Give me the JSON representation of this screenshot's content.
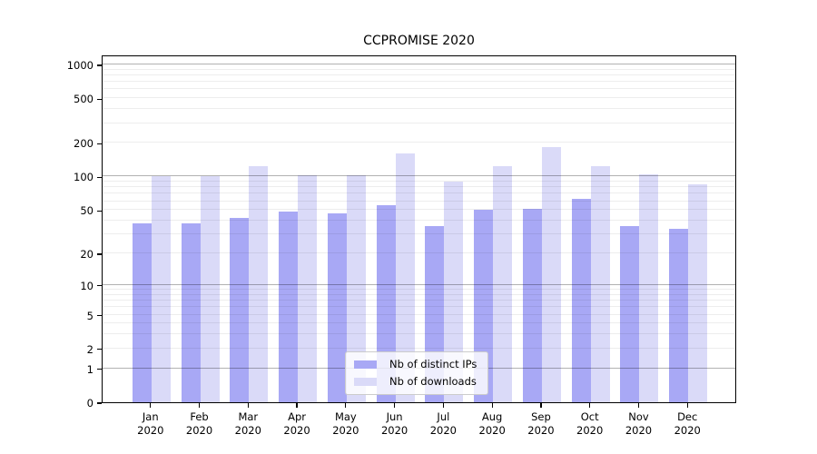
{
  "chart_data": {
    "type": "bar",
    "title": "CCPROMISE 2020",
    "categories": [
      "Jan 2020",
      "Feb 2020",
      "Mar 2020",
      "Apr 2020",
      "May 2020",
      "Jun 2020",
      "Jul 2020",
      "Aug 2020",
      "Sep 2020",
      "Oct 2020",
      "Nov 2020",
      "Dec 2020"
    ],
    "series": [
      {
        "name": "Nb of distinct IPs",
        "color": "#a8a8f5",
        "values": [
          38,
          38,
          42,
          48,
          47,
          55,
          36,
          50,
          51,
          63,
          36,
          34
        ]
      },
      {
        "name": "Nb of downloads",
        "color": "#dadaf8",
        "values": [
          100,
          101,
          125,
          103,
          102,
          160,
          91,
          125,
          183,
          125,
          104,
          85
        ]
      }
    ],
    "y_ticks": [
      0,
      1,
      2,
      5,
      10,
      20,
      50,
      100,
      200,
      500,
      1000
    ],
    "y_scale": "log(value+1)",
    "ylim": [
      0,
      1225
    ],
    "xlabel": "",
    "ylabel": "",
    "grid": true,
    "legend_position": "lower center",
    "colors": {
      "axis": "#000000",
      "major_grid": "#b0b0b0",
      "minor_grid": "#ededed",
      "background": "#ffffff"
    }
  }
}
